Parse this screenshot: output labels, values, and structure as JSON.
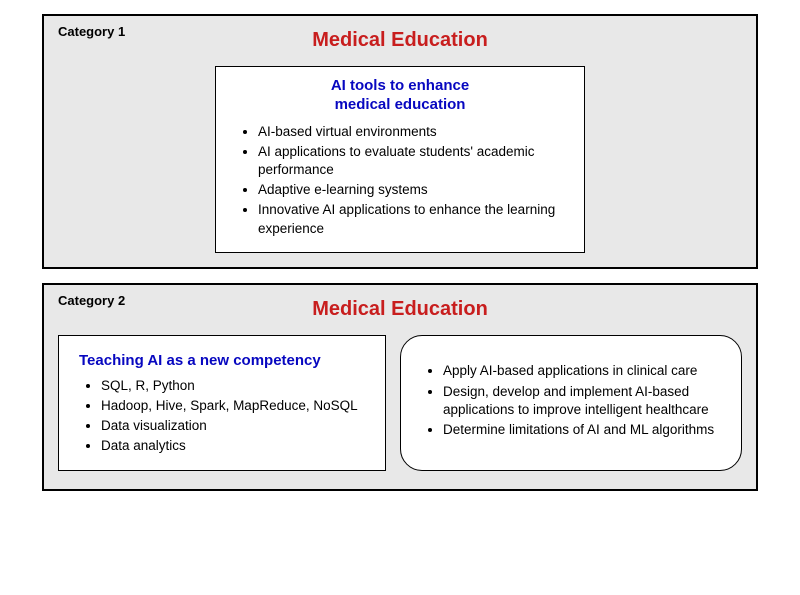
{
  "panels": [
    {
      "label": "Category 1",
      "title": "Medical Education",
      "title_color": "#c81e1e",
      "background_color": "#e8e8e8",
      "border_color": "#000000",
      "layout": "single-centered",
      "boxes": [
        {
          "shape": "square",
          "heading_lines": [
            "AI tools to enhance",
            "medical education"
          ],
          "heading_color": "#0707c0",
          "heading_fontsize": 15,
          "items": [
            "AI-based virtual environments",
            "AI applications to evaluate students' academic performance",
            "Adaptive e-learning systems",
            "Innovative AI applications to enhance the learning experience"
          ],
          "item_fontsize": 13.5
        }
      ]
    },
    {
      "label": "Category 2",
      "title": "Medical Education",
      "title_color": "#c81e1e",
      "background_color": "#e8e8e8",
      "border_color": "#000000",
      "layout": "two-column",
      "boxes": [
        {
          "shape": "square",
          "heading_lines": [
            "Teaching AI as a new competency"
          ],
          "heading_color": "#0707c0",
          "heading_fontsize": 15,
          "items": [
            "SQL, R, Python",
            "Hadoop, Hive, Spark, MapReduce, NoSQL",
            "Data visualization",
            "Data analytics"
          ],
          "item_fontsize": 13.5
        },
        {
          "shape": "rounded",
          "heading_lines": [],
          "items": [
            "Apply AI-based applications in clinical care",
            "Design, develop and implement AI-based applications to improve intelligent healthcare",
            "Determine limitations of AI and ML algorithms"
          ],
          "item_fontsize": 13.5
        }
      ]
    }
  ]
}
